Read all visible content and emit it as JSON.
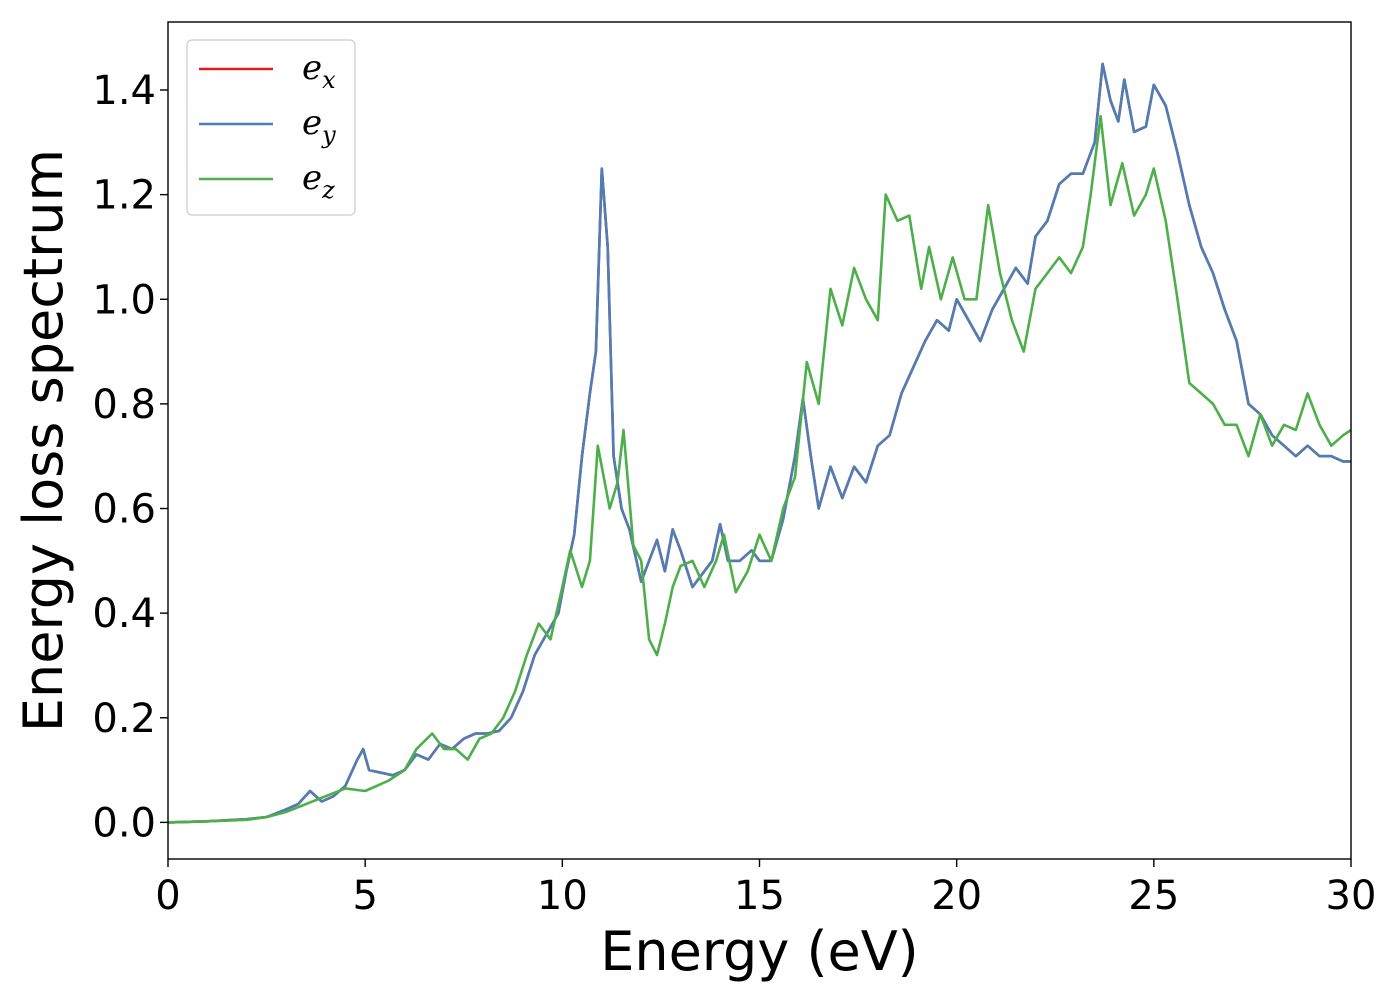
{
  "chart_data": {
    "type": "line",
    "xlabel": "Energy (eV)",
    "ylabel": "Energy loss spectrum",
    "xlim": [
      0,
      30
    ],
    "ylim": [
      -0.07,
      1.53
    ],
    "xticks": [
      "0",
      "5",
      "10",
      "15",
      "20",
      "25",
      "30"
    ],
    "yticks": [
      "0.0",
      "0.2",
      "0.4",
      "0.6",
      "0.8",
      "1.0",
      "1.2",
      "1.4"
    ],
    "grid": false,
    "legend_position": "top-left",
    "series": [
      {
        "name": "e_x",
        "label_base": "e",
        "label_sub": "x",
        "color": "#e41a1c",
        "points": [
          [
            0,
            0
          ],
          [
            1,
            0.002
          ],
          [
            2,
            0.006
          ],
          [
            2.5,
            0.01
          ],
          [
            3,
            0.025
          ],
          [
            3.3,
            0.035
          ],
          [
            3.6,
            0.06
          ],
          [
            3.9,
            0.04
          ],
          [
            4.2,
            0.05
          ],
          [
            4.5,
            0.07
          ],
          [
            4.8,
            0.12
          ],
          [
            4.95,
            0.14
          ],
          [
            5.1,
            0.1
          ],
          [
            5.4,
            0.095
          ],
          [
            5.7,
            0.09
          ],
          [
            6,
            0.1
          ],
          [
            6.3,
            0.13
          ],
          [
            6.6,
            0.12
          ],
          [
            6.9,
            0.15
          ],
          [
            7.2,
            0.14
          ],
          [
            7.5,
            0.16
          ],
          [
            7.8,
            0.17
          ],
          [
            8.1,
            0.17
          ],
          [
            8.4,
            0.175
          ],
          [
            8.7,
            0.2
          ],
          [
            9,
            0.25
          ],
          [
            9.3,
            0.32
          ],
          [
            9.6,
            0.36
          ],
          [
            9.9,
            0.4
          ],
          [
            10.1,
            0.48
          ],
          [
            10.3,
            0.55
          ],
          [
            10.5,
            0.7
          ],
          [
            10.7,
            0.82
          ],
          [
            10.85,
            0.9
          ],
          [
            11,
            1.25
          ],
          [
            11.15,
            1.1
          ],
          [
            11.3,
            0.7
          ],
          [
            11.5,
            0.6
          ],
          [
            11.7,
            0.56
          ],
          [
            12,
            0.46
          ],
          [
            12.2,
            0.5
          ],
          [
            12.4,
            0.54
          ],
          [
            12.6,
            0.48
          ],
          [
            12.8,
            0.56
          ],
          [
            13,
            0.52
          ],
          [
            13.3,
            0.45
          ],
          [
            13.6,
            0.48
          ],
          [
            13.8,
            0.5
          ],
          [
            14,
            0.57
          ],
          [
            14.2,
            0.5
          ],
          [
            14.5,
            0.5
          ],
          [
            14.8,
            0.52
          ],
          [
            15,
            0.5
          ],
          [
            15.3,
            0.5
          ],
          [
            15.6,
            0.58
          ],
          [
            15.9,
            0.7
          ],
          [
            16.1,
            0.81
          ],
          [
            16.3,
            0.7
          ],
          [
            16.5,
            0.6
          ],
          [
            16.8,
            0.68
          ],
          [
            17.1,
            0.62
          ],
          [
            17.4,
            0.68
          ],
          [
            17.7,
            0.65
          ],
          [
            18,
            0.72
          ],
          [
            18.3,
            0.74
          ],
          [
            18.6,
            0.82
          ],
          [
            18.9,
            0.87
          ],
          [
            19.2,
            0.92
          ],
          [
            19.5,
            0.96
          ],
          [
            19.8,
            0.94
          ],
          [
            20,
            1.0
          ],
          [
            20.3,
            0.96
          ],
          [
            20.6,
            0.92
          ],
          [
            20.9,
            0.98
          ],
          [
            21.2,
            1.02
          ],
          [
            21.5,
            1.06
          ],
          [
            21.8,
            1.03
          ],
          [
            22,
            1.12
          ],
          [
            22.3,
            1.15
          ],
          [
            22.6,
            1.22
          ],
          [
            22.9,
            1.24
          ],
          [
            23.2,
            1.24
          ],
          [
            23.5,
            1.3
          ],
          [
            23.7,
            1.45
          ],
          [
            23.9,
            1.38
          ],
          [
            24.1,
            1.34
          ],
          [
            24.25,
            1.42
          ],
          [
            24.5,
            1.32
          ],
          [
            24.8,
            1.33
          ],
          [
            25,
            1.41
          ],
          [
            25.3,
            1.37
          ],
          [
            25.6,
            1.28
          ],
          [
            25.9,
            1.18
          ],
          [
            26.2,
            1.1
          ],
          [
            26.5,
            1.05
          ],
          [
            26.8,
            0.98
          ],
          [
            27.1,
            0.92
          ],
          [
            27.4,
            0.8
          ],
          [
            27.7,
            0.78
          ],
          [
            28,
            0.74
          ],
          [
            28.3,
            0.72
          ],
          [
            28.6,
            0.7
          ],
          [
            28.9,
            0.72
          ],
          [
            29.2,
            0.7
          ],
          [
            29.5,
            0.7
          ],
          [
            29.8,
            0.69
          ],
          [
            30,
            0.69
          ]
        ]
      },
      {
        "name": "e_y",
        "label_base": "e",
        "label_sub": "y",
        "color": "#4d7eb5",
        "points": [
          [
            0,
            0
          ],
          [
            1,
            0.002
          ],
          [
            2,
            0.006
          ],
          [
            2.5,
            0.01
          ],
          [
            3,
            0.025
          ],
          [
            3.3,
            0.035
          ],
          [
            3.6,
            0.06
          ],
          [
            3.9,
            0.04
          ],
          [
            4.2,
            0.05
          ],
          [
            4.5,
            0.07
          ],
          [
            4.8,
            0.12
          ],
          [
            4.95,
            0.14
          ],
          [
            5.1,
            0.1
          ],
          [
            5.4,
            0.095
          ],
          [
            5.7,
            0.09
          ],
          [
            6,
            0.1
          ],
          [
            6.3,
            0.13
          ],
          [
            6.6,
            0.12
          ],
          [
            6.9,
            0.15
          ],
          [
            7.2,
            0.14
          ],
          [
            7.5,
            0.16
          ],
          [
            7.8,
            0.17
          ],
          [
            8.1,
            0.17
          ],
          [
            8.4,
            0.175
          ],
          [
            8.7,
            0.2
          ],
          [
            9,
            0.25
          ],
          [
            9.3,
            0.32
          ],
          [
            9.6,
            0.36
          ],
          [
            9.9,
            0.4
          ],
          [
            10.1,
            0.48
          ],
          [
            10.3,
            0.55
          ],
          [
            10.5,
            0.7
          ],
          [
            10.7,
            0.82
          ],
          [
            10.85,
            0.9
          ],
          [
            11,
            1.25
          ],
          [
            11.15,
            1.1
          ],
          [
            11.3,
            0.7
          ],
          [
            11.5,
            0.6
          ],
          [
            11.7,
            0.56
          ],
          [
            12,
            0.46
          ],
          [
            12.2,
            0.5
          ],
          [
            12.4,
            0.54
          ],
          [
            12.6,
            0.48
          ],
          [
            12.8,
            0.56
          ],
          [
            13,
            0.52
          ],
          [
            13.3,
            0.45
          ],
          [
            13.6,
            0.48
          ],
          [
            13.8,
            0.5
          ],
          [
            14,
            0.57
          ],
          [
            14.2,
            0.5
          ],
          [
            14.5,
            0.5
          ],
          [
            14.8,
            0.52
          ],
          [
            15,
            0.5
          ],
          [
            15.3,
            0.5
          ],
          [
            15.6,
            0.58
          ],
          [
            15.9,
            0.7
          ],
          [
            16.1,
            0.81
          ],
          [
            16.3,
            0.7
          ],
          [
            16.5,
            0.6
          ],
          [
            16.8,
            0.68
          ],
          [
            17.1,
            0.62
          ],
          [
            17.4,
            0.68
          ],
          [
            17.7,
            0.65
          ],
          [
            18,
            0.72
          ],
          [
            18.3,
            0.74
          ],
          [
            18.6,
            0.82
          ],
          [
            18.9,
            0.87
          ],
          [
            19.2,
            0.92
          ],
          [
            19.5,
            0.96
          ],
          [
            19.8,
            0.94
          ],
          [
            20,
            1.0
          ],
          [
            20.3,
            0.96
          ],
          [
            20.6,
            0.92
          ],
          [
            20.9,
            0.98
          ],
          [
            21.2,
            1.02
          ],
          [
            21.5,
            1.06
          ],
          [
            21.8,
            1.03
          ],
          [
            22,
            1.12
          ],
          [
            22.3,
            1.15
          ],
          [
            22.6,
            1.22
          ],
          [
            22.9,
            1.24
          ],
          [
            23.2,
            1.24
          ],
          [
            23.5,
            1.3
          ],
          [
            23.7,
            1.45
          ],
          [
            23.9,
            1.38
          ],
          [
            24.1,
            1.34
          ],
          [
            24.25,
            1.42
          ],
          [
            24.5,
            1.32
          ],
          [
            24.8,
            1.33
          ],
          [
            25,
            1.41
          ],
          [
            25.3,
            1.37
          ],
          [
            25.6,
            1.28
          ],
          [
            25.9,
            1.18
          ],
          [
            26.2,
            1.1
          ],
          [
            26.5,
            1.05
          ],
          [
            26.8,
            0.98
          ],
          [
            27.1,
            0.92
          ],
          [
            27.4,
            0.8
          ],
          [
            27.7,
            0.78
          ],
          [
            28,
            0.74
          ],
          [
            28.3,
            0.72
          ],
          [
            28.6,
            0.7
          ],
          [
            28.9,
            0.72
          ],
          [
            29.2,
            0.7
          ],
          [
            29.5,
            0.7
          ],
          [
            29.8,
            0.69
          ],
          [
            30,
            0.69
          ]
        ]
      },
      {
        "name": "e_z",
        "label_base": "e",
        "label_sub": "z",
        "color": "#4daf4a",
        "points": [
          [
            0,
            0
          ],
          [
            1,
            0.002
          ],
          [
            2,
            0.005
          ],
          [
            2.5,
            0.01
          ],
          [
            3,
            0.02
          ],
          [
            3.5,
            0.035
          ],
          [
            4,
            0.05
          ],
          [
            4.5,
            0.065
          ],
          [
            5,
            0.06
          ],
          [
            5.3,
            0.07
          ],
          [
            5.6,
            0.08
          ],
          [
            6,
            0.1
          ],
          [
            6.3,
            0.14
          ],
          [
            6.7,
            0.17
          ],
          [
            7,
            0.14
          ],
          [
            7.3,
            0.14
          ],
          [
            7.6,
            0.12
          ],
          [
            7.9,
            0.16
          ],
          [
            8.2,
            0.17
          ],
          [
            8.5,
            0.2
          ],
          [
            8.8,
            0.25
          ],
          [
            9.1,
            0.32
          ],
          [
            9.4,
            0.38
          ],
          [
            9.7,
            0.35
          ],
          [
            10,
            0.45
          ],
          [
            10.2,
            0.52
          ],
          [
            10.5,
            0.45
          ],
          [
            10.7,
            0.5
          ],
          [
            10.9,
            0.72
          ],
          [
            11.2,
            0.6
          ],
          [
            11.4,
            0.65
          ],
          [
            11.55,
            0.75
          ],
          [
            11.8,
            0.53
          ],
          [
            12,
            0.5
          ],
          [
            12.2,
            0.35
          ],
          [
            12.4,
            0.32
          ],
          [
            12.6,
            0.38
          ],
          [
            12.8,
            0.45
          ],
          [
            13,
            0.49
          ],
          [
            13.3,
            0.5
          ],
          [
            13.6,
            0.45
          ],
          [
            13.9,
            0.5
          ],
          [
            14.1,
            0.55
          ],
          [
            14.4,
            0.44
          ],
          [
            14.7,
            0.48
          ],
          [
            15,
            0.55
          ],
          [
            15.3,
            0.5
          ],
          [
            15.6,
            0.6
          ],
          [
            15.9,
            0.66
          ],
          [
            16.2,
            0.88
          ],
          [
            16.5,
            0.8
          ],
          [
            16.8,
            1.02
          ],
          [
            17.1,
            0.95
          ],
          [
            17.4,
            1.06
          ],
          [
            17.7,
            1.0
          ],
          [
            18,
            0.96
          ],
          [
            18.2,
            1.2
          ],
          [
            18.5,
            1.15
          ],
          [
            18.8,
            1.16
          ],
          [
            19.1,
            1.02
          ],
          [
            19.3,
            1.1
          ],
          [
            19.6,
            1.0
          ],
          [
            19.9,
            1.08
          ],
          [
            20.2,
            1.0
          ],
          [
            20.5,
            1.0
          ],
          [
            20.8,
            1.18
          ],
          [
            21.1,
            1.05
          ],
          [
            21.4,
            0.96
          ],
          [
            21.7,
            0.9
          ],
          [
            22,
            1.02
          ],
          [
            22.3,
            1.05
          ],
          [
            22.6,
            1.08
          ],
          [
            22.9,
            1.05
          ],
          [
            23.2,
            1.1
          ],
          [
            23.4,
            1.2
          ],
          [
            23.65,
            1.35
          ],
          [
            23.9,
            1.18
          ],
          [
            24.2,
            1.26
          ],
          [
            24.5,
            1.16
          ],
          [
            24.8,
            1.2
          ],
          [
            25,
            1.25
          ],
          [
            25.3,
            1.15
          ],
          [
            25.6,
            1.0
          ],
          [
            25.9,
            0.84
          ],
          [
            26.2,
            0.82
          ],
          [
            26.5,
            0.8
          ],
          [
            26.8,
            0.76
          ],
          [
            27.1,
            0.76
          ],
          [
            27.4,
            0.7
          ],
          [
            27.7,
            0.78
          ],
          [
            28,
            0.72
          ],
          [
            28.3,
            0.76
          ],
          [
            28.6,
            0.75
          ],
          [
            28.9,
            0.82
          ],
          [
            29.2,
            0.76
          ],
          [
            29.5,
            0.72
          ],
          [
            29.8,
            0.74
          ],
          [
            30,
            0.75
          ]
        ]
      }
    ]
  }
}
